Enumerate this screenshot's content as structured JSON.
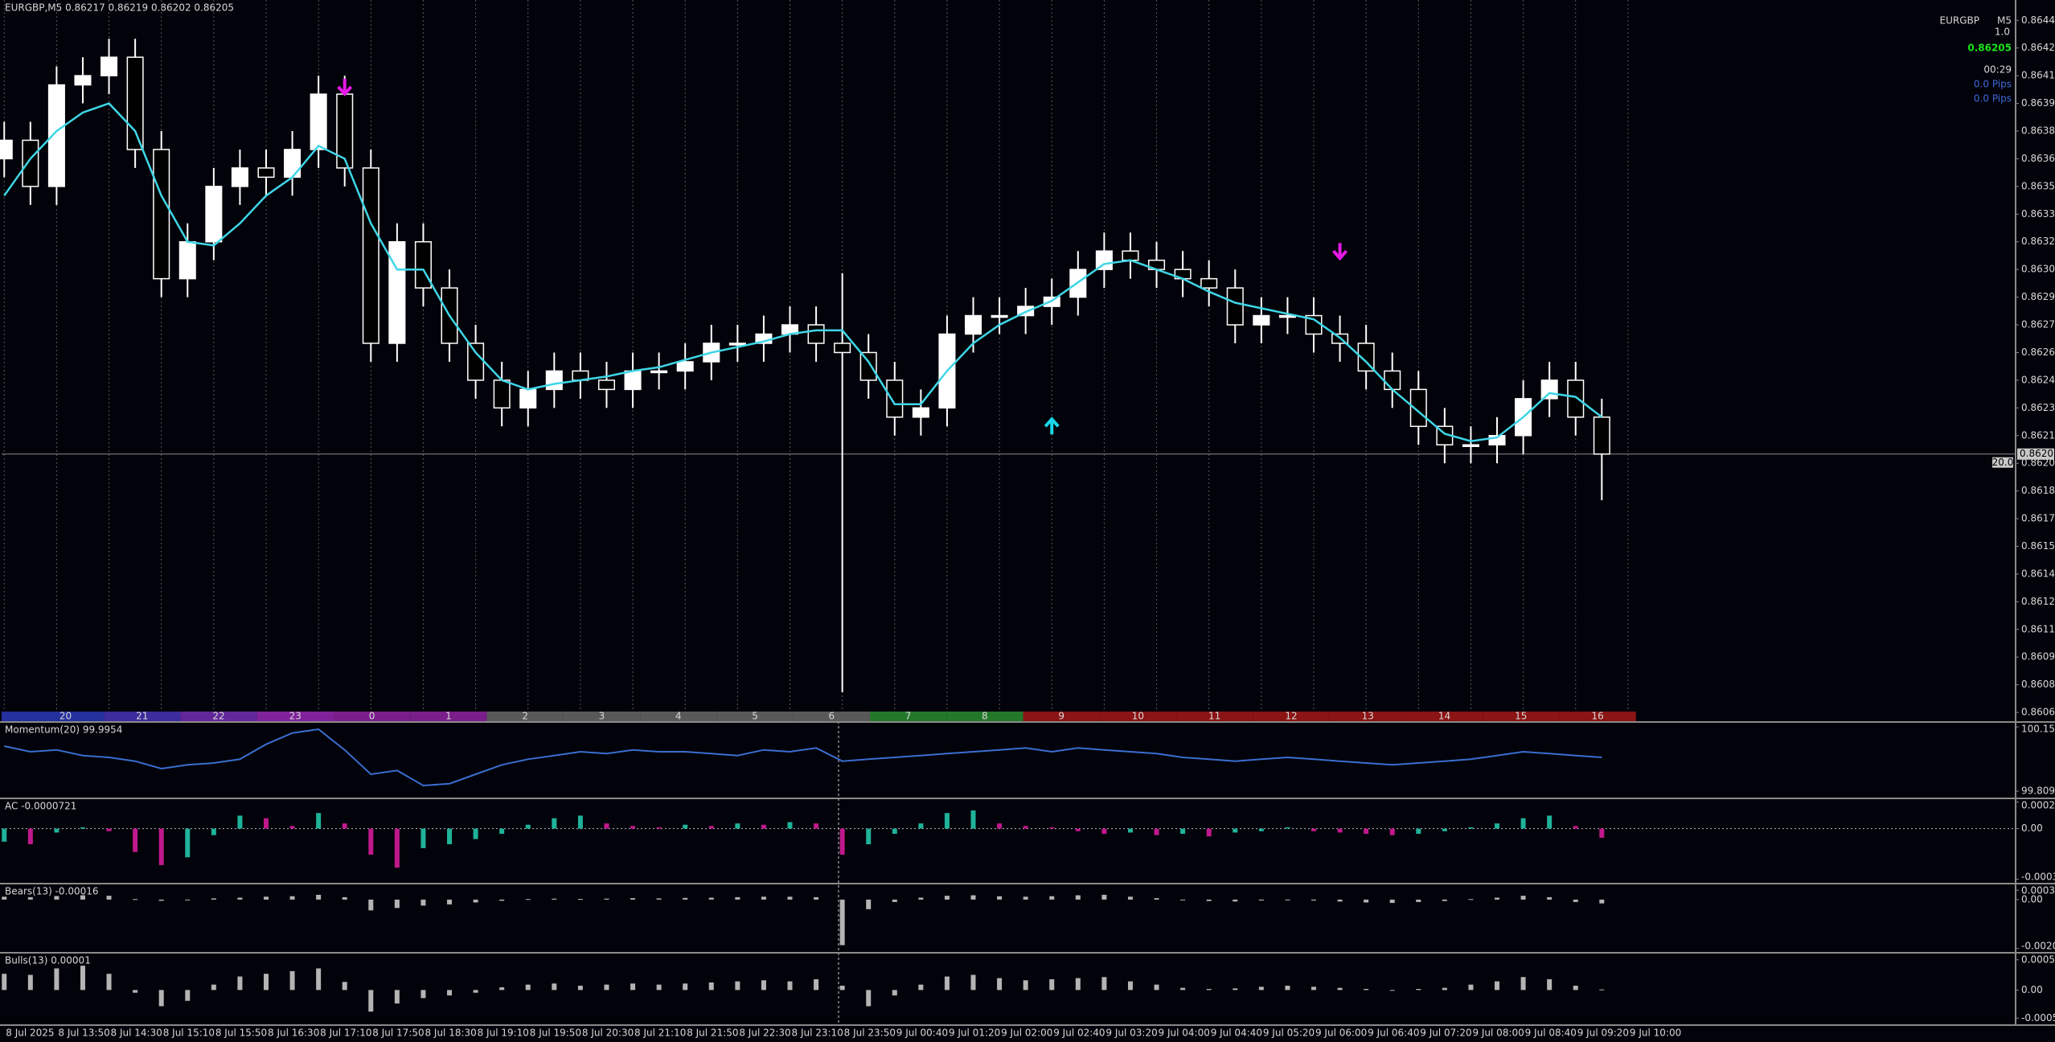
{
  "chart_data": [
    {
      "type": "candlestick",
      "title": "EURGBP,M5  0.86217 0.86219 0.86202 0.86205",
      "open": [
        0.86365,
        0.86375,
        0.8635,
        0.86405,
        0.8641,
        0.8642,
        0.8637,
        0.863,
        0.8632,
        0.8635,
        0.8636,
        0.86355,
        0.8637,
        0.864,
        0.8636,
        0.86265,
        0.8632,
        0.86295,
        0.86265,
        0.86245,
        0.8623,
        0.8624,
        0.8625,
        0.86245,
        0.8624,
        0.8625,
        0.8625,
        0.86255,
        0.86265,
        0.86265,
        0.8627,
        0.86275,
        0.86265,
        0.8626,
        0.86245,
        0.86225,
        0.8623,
        0.8627,
        0.8628,
        0.8628,
        0.86285,
        0.8629,
        0.86305,
        0.86315,
        0.8631,
        0.86305,
        0.863,
        0.86295,
        0.86275,
        0.8628,
        0.8628,
        0.8627,
        0.86265,
        0.8625,
        0.8624,
        0.8622,
        0.8621,
        0.8621,
        0.86215,
        0.86235,
        0.86245,
        0.86225
      ],
      "high": [
        0.86385,
        0.86385,
        0.86415,
        0.8642,
        0.8643,
        0.8643,
        0.8638,
        0.8633,
        0.8636,
        0.8637,
        0.8637,
        0.8638,
        0.8641,
        0.8641,
        0.8637,
        0.8633,
        0.8633,
        0.86305,
        0.86275,
        0.86255,
        0.8625,
        0.8626,
        0.8626,
        0.86255,
        0.8626,
        0.8626,
        0.86265,
        0.86275,
        0.86275,
        0.8628,
        0.86285,
        0.86285,
        0.86303,
        0.8627,
        0.86255,
        0.8624,
        0.8628,
        0.8629,
        0.8629,
        0.86295,
        0.863,
        0.86315,
        0.86325,
        0.86325,
        0.8632,
        0.86315,
        0.8631,
        0.86305,
        0.8629,
        0.8629,
        0.8629,
        0.8628,
        0.86275,
        0.8626,
        0.8625,
        0.8623,
        0.8622,
        0.86225,
        0.86245,
        0.86255,
        0.86255,
        0.86235
      ],
      "low": [
        0.86355,
        0.8634,
        0.8634,
        0.86395,
        0.864,
        0.8636,
        0.8629,
        0.8629,
        0.8631,
        0.8634,
        0.86345,
        0.86345,
        0.8636,
        0.8635,
        0.86255,
        0.86255,
        0.86285,
        0.86255,
        0.86235,
        0.8622,
        0.8622,
        0.8623,
        0.86235,
        0.8623,
        0.8623,
        0.8624,
        0.8624,
        0.86245,
        0.86255,
        0.86255,
        0.8626,
        0.86255,
        0.86076,
        0.86235,
        0.86215,
        0.86215,
        0.8622,
        0.8626,
        0.8627,
        0.8627,
        0.86275,
        0.8628,
        0.86295,
        0.863,
        0.86295,
        0.8629,
        0.86285,
        0.86265,
        0.86265,
        0.8627,
        0.8626,
        0.86255,
        0.8624,
        0.8623,
        0.8621,
        0.862,
        0.862,
        0.862,
        0.86205,
        0.86225,
        0.86215,
        0.8618
      ],
      "close": [
        0.86375,
        0.8635,
        0.86405,
        0.8641,
        0.8642,
        0.8637,
        0.863,
        0.8632,
        0.8635,
        0.8636,
        0.86355,
        0.8637,
        0.864,
        0.8636,
        0.86265,
        0.8632,
        0.86295,
        0.86265,
        0.86245,
        0.8623,
        0.8624,
        0.8625,
        0.86245,
        0.8624,
        0.8625,
        0.8625,
        0.86255,
        0.86265,
        0.86265,
        0.8627,
        0.86275,
        0.86265,
        0.8626,
        0.86245,
        0.86225,
        0.8623,
        0.8627,
        0.8628,
        0.8628,
        0.86285,
        0.8629,
        0.86305,
        0.86315,
        0.8631,
        0.86305,
        0.863,
        0.86295,
        0.86275,
        0.8628,
        0.8628,
        0.8627,
        0.86265,
        0.8625,
        0.8624,
        0.8622,
        0.8621,
        0.8621,
        0.86215,
        0.86235,
        0.86245,
        0.86225,
        0.86205
      ],
      "up_color": "#ffffff",
      "down_color": "#000000",
      "wick_color": "#ffffff",
      "ma_values": [
        0.86345,
        0.86365,
        0.8638,
        0.8639,
        0.86395,
        0.8638,
        0.86345,
        0.8632,
        0.86318,
        0.8633,
        0.86345,
        0.86355,
        0.86372,
        0.86365,
        0.8633,
        0.86305,
        0.86305,
        0.8628,
        0.8626,
        0.86245,
        0.8624,
        0.86243,
        0.86245,
        0.86247,
        0.8625,
        0.86252,
        0.86256,
        0.8626,
        0.86263,
        0.86266,
        0.8627,
        0.86272,
        0.86272,
        0.86255,
        0.86232,
        0.86232,
        0.8625,
        0.86265,
        0.86275,
        0.86282,
        0.86288,
        0.86298,
        0.86308,
        0.8631,
        0.86305,
        0.863,
        0.86293,
        0.86287,
        0.86284,
        0.86281,
        0.86278,
        0.86268,
        0.86255,
        0.8624,
        0.86228,
        0.86216,
        0.86212,
        0.86214,
        0.86225,
        0.86238,
        0.86236,
        0.86225
      ],
      "ma_color": "#3ed6e6",
      "xlim": [
        -0.1,
        76.8
      ],
      "xticks": [
        {
          "value": 0,
          "label": "8 Jul 2025"
        },
        {
          "value": 2,
          "label": "8 Jul 13:50"
        },
        {
          "value": 4,
          "label": "8 Jul 14:30"
        },
        {
          "value": 6,
          "label": "8 Jul 15:10"
        },
        {
          "value": 8,
          "label": "8 Jul 15:50"
        },
        {
          "value": 10,
          "label": "8 Jul 16:30"
        },
        {
          "value": 12,
          "label": "8 Jul 17:10"
        },
        {
          "value": 14,
          "label": "8 Jul 17:50"
        },
        {
          "value": 16,
          "label": "8 Jul 18:30"
        },
        {
          "value": 18,
          "label": "8 Jul 19:10"
        },
        {
          "value": 20,
          "label": "8 Jul 19:50"
        },
        {
          "value": 22,
          "label": "8 Jul 20:30"
        },
        {
          "value": 24,
          "label": "8 Jul 21:10"
        },
        {
          "value": 26,
          "label": "8 Jul 21:50"
        },
        {
          "value": 28,
          "label": "8 Jul 22:30"
        },
        {
          "value": 30,
          "label": "8 Jul 23:10"
        },
        {
          "value": 32,
          "label": "8 Jul 23:50"
        },
        {
          "value": 34,
          "label": "9 Jul 00:40"
        },
        {
          "value": 36,
          "label": "9 Jul 01:20"
        },
        {
          "value": 38,
          "label": "9 Jul 02:00"
        },
        {
          "value": 40,
          "label": "9 Jul 02:40"
        },
        {
          "value": 42,
          "label": "9 Jul 03:20"
        },
        {
          "value": 44,
          "label": "9 Jul 04:00"
        },
        {
          "value": 46,
          "label": "9 Jul 04:40"
        },
        {
          "value": 48,
          "label": "9 Jul 05:20"
        },
        {
          "value": 50,
          "label": "9 Jul 06:00"
        },
        {
          "value": 52,
          "label": "9 Jul 06:40"
        },
        {
          "value": 54,
          "label": "9 Jul 07:20"
        },
        {
          "value": 56,
          "label": "9 Jul 08:00"
        },
        {
          "value": 58,
          "label": "9 Jul 08:40"
        },
        {
          "value": 60,
          "label": "9 Jul 09:20"
        },
        {
          "value": 62,
          "label": "9 Jul 10:00"
        }
      ],
      "ylim": [
        0.86062,
        0.86451
      ],
      "yticks": [
        {
          "value": 0.8644,
          "label": "0.86440"
        },
        0.86425,
        {
          "value": 0.8641,
          "label": "0.86410"
        },
        0.86395,
        {
          "value": 0.8638,
          "label": "0.86380"
        },
        0.86365,
        {
          "value": 0.8635,
          "label": "0.86350"
        },
        0.86335,
        {
          "value": 0.8632,
          "label": "0.86320"
        },
        0.86305,
        {
          "value": 0.8629,
          "label": "0.86290"
        },
        0.86275,
        {
          "value": 0.8626,
          "label": "0.86260"
        },
        0.86245,
        {
          "value": 0.8623,
          "label": "0.86230"
        },
        0.86215,
        {
          "value": 0.862,
          "label": "0.86200"
        },
        0.86185,
        {
          "value": 0.8617,
          "label": "0.86170"
        },
        0.86155,
        {
          "value": 0.8614,
          "label": "0.86140"
        },
        0.86125,
        {
          "value": 0.8611,
          "label": "0.86110"
        },
        0.86095,
        {
          "value": 0.8608,
          "label": "0.86080"
        },
        0.86065
      ],
      "grid": true,
      "last_price": 0.86205,
      "level_label": "20.0",
      "symbol": "EURGBP",
      "timeframe": "M5",
      "spread": "1.0",
      "timer": "00:29",
      "price_color": "#19e619",
      "pips": [
        "0.0 Pips",
        "0.0 Pips"
      ],
      "pips_color": "#3e6ad6",
      "arrows": [
        {
          "x": 13,
          "y": 0.86404,
          "direction": "down",
          "color": "#e619e6"
        },
        {
          "x": 51,
          "y": 0.86315,
          "direction": "down",
          "color": "#e619e6"
        },
        {
          "x": 40,
          "y": 0.8622,
          "direction": "up",
          "color": "#19d6e6"
        }
      ],
      "sessions": {
        "labels": [
          "20",
          "21",
          "22",
          "23",
          "0",
          "1",
          "2",
          "3",
          "4",
          "5",
          "6",
          "7",
          "8",
          "9",
          "10",
          "11",
          "12",
          "13",
          "14",
          "15",
          "16"
        ],
        "colors": [
          "#24309c",
          "#3c2c9c",
          "#62289a",
          "#80229a",
          "#7a1e8a",
          "#7a1e8a",
          "#595959",
          "#595959",
          "#595959",
          "#595959",
          "#595959",
          "#23782a",
          "#23782a",
          "#8b1414",
          "#8b1414",
          "#8b1414",
          "#8b1414",
          "#8b1414",
          "#8b1414",
          "#8b1414",
          "#8b1414"
        ]
      }
    },
    {
      "type": "line",
      "title": "Momentum(20) 99.9954",
      "color": "#3a6ecf",
      "values": [
        100.05,
        100.02,
        100.03,
        100.0,
        99.99,
        99.97,
        99.93,
        99.95,
        99.96,
        99.98,
        100.06,
        100.12,
        100.14,
        100.03,
        99.9,
        99.92,
        99.84,
        99.85,
        99.9,
        99.95,
        99.98,
        100.0,
        100.02,
        100.01,
        100.03,
        100.02,
        100.02,
        100.01,
        100.0,
        100.03,
        100.02,
        100.04,
        99.97,
        99.98,
        99.99,
        100.0,
        100.01,
        100.02,
        100.03,
        100.04,
        100.02,
        100.04,
        100.03,
        100.02,
        100.01,
        99.99,
        99.98,
        99.97,
        99.98,
        99.99,
        99.98,
        99.97,
        99.96,
        99.95,
        99.96,
        99.97,
        99.98,
        100.0,
        100.02,
        100.01,
        100.0,
        99.99
      ],
      "ylim": [
        99.78,
        100.17
      ],
      "yticks": [
        100.1524,
        99.8097
      ]
    },
    {
      "type": "bar",
      "title": "AC -0.0000721",
      "up_color": "#1fb39a",
      "down_color": "#c0198c",
      "values": [
        -0.0001,
        -0.00012,
        -3e-05,
        1e-05,
        -2e-05,
        -0.00018,
        -0.00028,
        -0.00022,
        -5e-05,
        0.0001,
        8e-05,
        2e-05,
        0.00012,
        4e-05,
        -0.0002,
        -0.0003,
        -0.00015,
        -0.00012,
        -8e-05,
        -4e-05,
        3e-05,
        8e-05,
        0.0001,
        4e-05,
        2e-05,
        1e-05,
        3e-05,
        2e-05,
        4e-05,
        3e-05,
        5e-05,
        4e-05,
        -0.0002,
        -0.00012,
        -4e-05,
        4e-05,
        0.00012,
        0.00014,
        4e-05,
        2e-05,
        1e-05,
        -2e-05,
        -4e-05,
        -3e-05,
        -5e-05,
        -4e-05,
        -6e-05,
        -3e-05,
        -2e-05,
        1e-05,
        -2e-05,
        -3e-05,
        -4e-05,
        -5e-05,
        -4e-05,
        -2e-05,
        1e-05,
        4e-05,
        8e-05,
        0.0001,
        2e-05,
        -7e-05
      ],
      "ylim": [
        -0.00041,
        0.00022
      ],
      "yticks": [
        0.0002024,
        {
          "value": 0,
          "label": "0.00"
        },
        -0.000388
      ]
    },
    {
      "type": "bar",
      "title": "Bears(13) -0.00016",
      "color": "#b4b4b4",
      "values": [
        0.00012,
        0.0001,
        0.00015,
        0.00018,
        0.00016,
        2e-05,
        -5e-05,
        -2e-05,
        5e-05,
        8e-05,
        0.00012,
        0.00014,
        0.0002,
        0.0001,
        -0.00045,
        -0.00035,
        -0.00025,
        -0.0002,
        -0.00012,
        -5e-05,
        2e-05,
        4e-05,
        3e-05,
        4e-05,
        6e-05,
        5e-05,
        7e-05,
        8e-05,
        0.0001,
        0.00012,
        0.00012,
        0.0001,
        -0.0019,
        -0.0004,
        -0.0001,
        8e-05,
        0.00016,
        0.00018,
        0.00014,
        0.00012,
        0.00014,
        0.00018,
        0.0002,
        0.00012,
        6e-05,
        -2e-05,
        -6e-05,
        -8e-05,
        -4e-05,
        -2e-05,
        -4e-05,
        -8e-05,
        -0.00012,
        -0.00014,
        -0.0001,
        -6e-05,
        2e-05,
        8e-05,
        0.00016,
        0.0001,
        -0.0001,
        -0.00016
      ],
      "ylim": [
        -0.00215,
        0.0006
      ],
      "yticks": [
        0.00039,
        {
          "value": 0,
          "label": "0.00"
        },
        -0.00204
      ]
    },
    {
      "type": "bar",
      "title": "Bulls(13) 0.00001",
      "color": "#b4b4b4",
      "values": [
        0.0003,
        0.00028,
        0.0004,
        0.00045,
        0.0003,
        -5e-05,
        -0.0003,
        -0.0002,
        0.0001,
        0.00025,
        0.0003,
        0.00035,
        0.0004,
        0.00015,
        -0.0004,
        -0.00025,
        -0.00015,
        -0.0001,
        -5e-05,
        5e-05,
        0.0001,
        0.00012,
        8e-05,
        0.0001,
        0.00012,
        0.0001,
        0.00012,
        0.00014,
        0.00016,
        0.00018,
        0.00016,
        0.0002,
        8e-05,
        -0.0003,
        -0.0001,
        0.0001,
        0.00025,
        0.00028,
        0.00022,
        0.00018,
        0.0002,
        0.00022,
        0.00024,
        0.00016,
        0.0001,
        4e-05,
        2e-05,
        3e-05,
        6e-05,
        8e-05,
        6e-05,
        4e-05,
        2e-05,
        0,
        2e-05,
        4e-05,
        0.0001,
        0.00016,
        0.00024,
        0.0002,
        8e-05,
        1e-05
      ],
      "ylim": [
        -0.00062,
        0.00066
      ],
      "yticks": [
        0.00056,
        {
          "value": 0,
          "label": "0.00"
        },
        -0.00052
      ]
    }
  ]
}
